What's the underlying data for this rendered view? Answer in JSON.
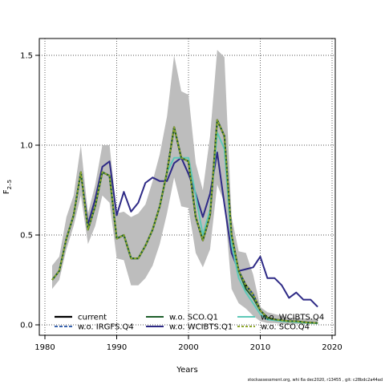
{
  "chart_data": {
    "type": "line",
    "xlabel": "Years",
    "ylabel": "F2-5",
    "ylabel_main": "F",
    "ylabel_sub": "2–5",
    "xlim": [
      1980,
      2020
    ],
    "ylim": [
      0,
      1.5
    ],
    "x_ticks": [
      1980,
      1990,
      2000,
      2010,
      2020
    ],
    "x_tick_labels": [
      "1980",
      "1990",
      "2000",
      "2010",
      "2020"
    ],
    "y_ticks": [
      0,
      0.5,
      1,
      1.5
    ],
    "y_tick_labels": [
      "0.0",
      "0.5",
      "1.0",
      "1.5"
    ],
    "grid": "dotted",
    "legend_position": "bottom-left",
    "x": [
      1981,
      1982,
      1983,
      1984,
      1985,
      1986,
      1987,
      1988,
      1989,
      1990,
      1991,
      1992,
      1993,
      1994,
      1995,
      1996,
      1997,
      1998,
      1999,
      2000,
      2001,
      2002,
      2003,
      2004,
      2005,
      2006,
      2007,
      2008,
      2009,
      2010,
      2011,
      2012,
      2013,
      2014,
      2015,
      2016,
      2017,
      2018
    ],
    "band": {
      "color": "#bdbdbd",
      "lower": [
        0.2,
        0.25,
        0.42,
        0.55,
        0.72,
        0.45,
        0.55,
        0.72,
        0.68,
        0.37,
        0.36,
        0.22,
        0.22,
        0.26,
        0.33,
        0.45,
        0.62,
        0.82,
        0.66,
        0.65,
        0.4,
        0.32,
        0.42,
        0.78,
        0.68,
        0.2,
        0.12,
        0.09,
        0.05,
        0.02,
        0.01,
        0.01,
        0.005,
        0.005,
        0.005,
        0.005,
        0.005,
        0.005
      ],
      "upper": [
        0.33,
        0.38,
        0.6,
        0.72,
        1.0,
        0.62,
        0.78,
        1.0,
        1.0,
        0.62,
        0.63,
        0.6,
        0.62,
        0.67,
        0.8,
        0.95,
        1.16,
        1.5,
        1.3,
        1.28,
        0.9,
        0.75,
        1.05,
        1.53,
        1.49,
        0.6,
        0.41,
        0.4,
        0.28,
        0.1,
        0.07,
        0.06,
        0.05,
        0.04,
        0.04,
        0.035,
        0.035,
        0.03
      ]
    },
    "series": [
      {
        "name": "current",
        "color": "#000000",
        "dash": "",
        "width": 2.2,
        "values": [
          0.25,
          0.3,
          0.48,
          0.61,
          0.85,
          0.53,
          0.66,
          0.85,
          0.83,
          0.48,
          0.5,
          0.37,
          0.37,
          0.44,
          0.53,
          0.66,
          0.85,
          1.1,
          0.93,
          0.91,
          0.6,
          0.47,
          0.61,
          1.14,
          1.05,
          0.5,
          0.3,
          0.22,
          0.17,
          0.08,
          0.04,
          0.03,
          0.025,
          0.02,
          0.02,
          0.015,
          0.012,
          0.01
        ]
      },
      {
        "name": "w.o. WCIBTS.Q1",
        "color": "#2e2a86",
        "dash": "",
        "width": 2.0,
        "values": [
          0.25,
          0.3,
          0.48,
          0.61,
          0.85,
          0.56,
          0.7,
          0.88,
          0.91,
          0.61,
          0.74,
          0.63,
          0.68,
          0.79,
          0.82,
          0.8,
          0.8,
          0.9,
          0.93,
          0.84,
          0.73,
          0.6,
          0.73,
          0.96,
          0.67,
          0.4,
          0.3,
          0.31,
          0.32,
          0.38,
          0.26,
          0.26,
          0.22,
          0.15,
          0.18,
          0.14,
          0.14,
          0.1
        ]
      },
      {
        "name": "w.o. IRGFS.Q4",
        "color": "#1f4fa3",
        "dash": "4,2",
        "width": 1.8,
        "values": [
          0.25,
          0.3,
          0.48,
          0.61,
          0.85,
          0.53,
          0.66,
          0.85,
          0.83,
          0.48,
          0.5,
          0.37,
          0.37,
          0.44,
          0.53,
          0.66,
          0.85,
          1.1,
          0.93,
          0.91,
          0.6,
          0.47,
          0.61,
          1.14,
          1.05,
          0.5,
          0.3,
          0.22,
          0.17,
          0.08,
          0.04,
          0.03,
          0.025,
          0.02,
          0.02,
          0.015,
          0.012,
          0.01
        ]
      },
      {
        "name": "w.o. WCIBTS.Q4",
        "color": "#5ec9b8",
        "dash": "",
        "width": 2.0,
        "values": [
          0.25,
          0.3,
          0.48,
          0.61,
          0.85,
          0.53,
          0.66,
          0.85,
          0.83,
          0.48,
          0.5,
          0.37,
          0.37,
          0.44,
          0.53,
          0.66,
          0.85,
          0.93,
          0.93,
          0.93,
          0.72,
          0.5,
          0.64,
          1.07,
          0.98,
          0.45,
          0.26,
          0.18,
          0.12,
          0.06,
          0.03,
          0.025,
          0.02,
          0.018,
          0.015,
          0.012,
          0.01,
          0.008
        ]
      },
      {
        "name": "w.o. SCO.Q1",
        "color": "#1d5e2a",
        "dash": "",
        "width": 2.0,
        "values": [
          0.25,
          0.3,
          0.48,
          0.61,
          0.85,
          0.53,
          0.66,
          0.85,
          0.83,
          0.48,
          0.5,
          0.37,
          0.37,
          0.44,
          0.53,
          0.66,
          0.85,
          1.1,
          0.93,
          0.91,
          0.6,
          0.47,
          0.61,
          1.14,
          1.05,
          0.5,
          0.3,
          0.2,
          0.15,
          0.08,
          0.04,
          0.03,
          0.025,
          0.02,
          0.02,
          0.015,
          0.012,
          0.01
        ]
      },
      {
        "name": "w.o. SCO.Q4",
        "color": "#8fa82e",
        "dash": "3,2",
        "width": 2.0,
        "values": [
          0.25,
          0.3,
          0.48,
          0.61,
          0.85,
          0.53,
          0.66,
          0.85,
          0.83,
          0.48,
          0.5,
          0.37,
          0.37,
          0.44,
          0.53,
          0.66,
          0.85,
          1.1,
          0.93,
          0.91,
          0.6,
          0.47,
          0.61,
          1.14,
          1.05,
          0.5,
          0.3,
          0.22,
          0.17,
          0.08,
          0.04,
          0.03,
          0.025,
          0.02,
          0.02,
          0.015,
          0.012,
          0.01
        ]
      }
    ],
    "legend_order": [
      0,
      2,
      4,
      1,
      3,
      5
    ]
  },
  "footnote": "stockassessment.org, whi 6a dec2020, r13455 , git: c28bdc2a44ad"
}
